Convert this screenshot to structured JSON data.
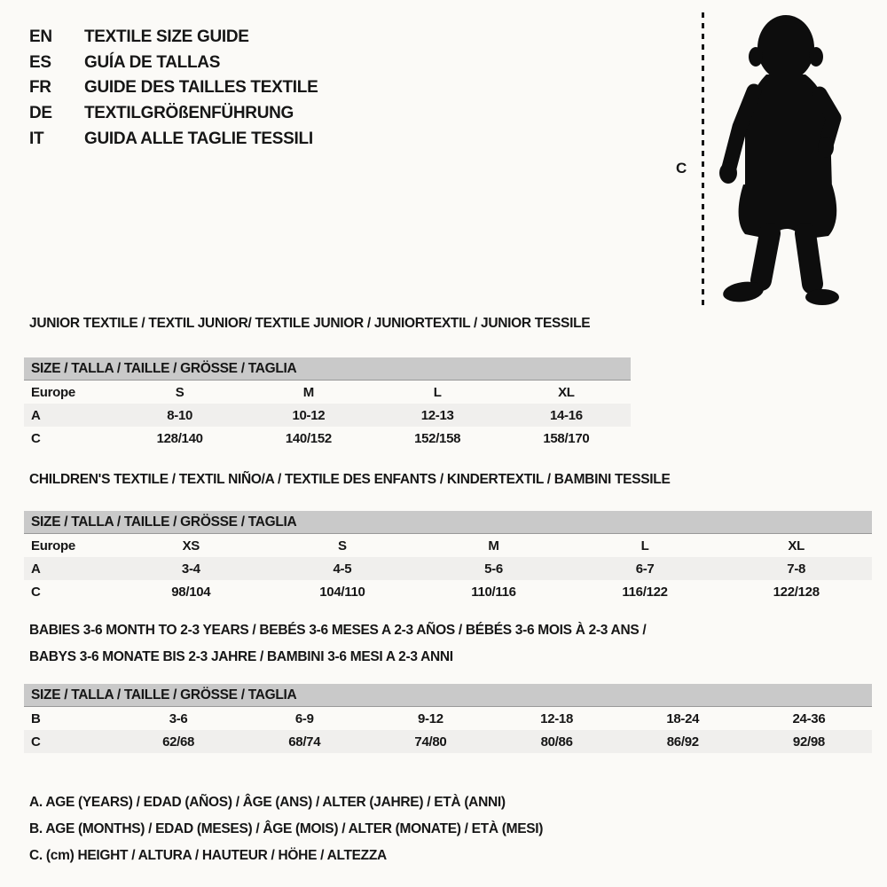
{
  "page": {
    "bg": "#fbfaf7",
    "fg": "#161616",
    "band_color": "#c9c9c9",
    "alt_row_color": "#f0efed",
    "silhouette_color": "#0d0d0d"
  },
  "languages": [
    {
      "code": "EN",
      "label": "TEXTILE SIZE GUIDE"
    },
    {
      "code": "ES",
      "label": "GUÍA DE TALLAS"
    },
    {
      "code": "FR",
      "label": "GUIDE DES TAILLES TEXTILE"
    },
    {
      "code": "DE",
      "label": "TEXTILGRÖßENFÜHRUNG"
    },
    {
      "code": "IT",
      "label": "GUIDA ALLE TAGLIE TESSILI"
    }
  ],
  "figure": {
    "measure_label": "C",
    "silhouette": "toddler-silhouette"
  },
  "tables": [
    {
      "title": "JUNIOR TEXTILE / TEXTIL JUNIOR/ TEXTILE JUNIOR / JUNIORTEXTIL / JUNIOR TESSILE",
      "header": "SIZE / TALLA / TAILLE / GRÖSSE / TAGLIA",
      "rows": [
        {
          "label": "Europe",
          "cells": [
            "S",
            "M",
            "L",
            "XL"
          ]
        },
        {
          "label": "A",
          "cells": [
            "8-10",
            "10-12",
            "12-13",
            "14-16"
          ]
        },
        {
          "label": "C",
          "cells": [
            "128/140",
            "140/152",
            "152/158",
            "158/170"
          ]
        }
      ]
    },
    {
      "title": "CHILDREN'S TEXTILE / TEXTIL NIÑO/A / TEXTILE DES ENFANTS / KINDERTEXTIL / BAMBINI TESSILE",
      "header": "SIZE / TALLA / TAILLE / GRÖSSE / TAGLIA",
      "rows": [
        {
          "label": "Europe",
          "cells": [
            "XS",
            "S",
            "M",
            "L",
            "XL"
          ]
        },
        {
          "label": "A",
          "cells": [
            "3-4",
            "4-5",
            "5-6",
            "6-7",
            "7-8"
          ]
        },
        {
          "label": "C",
          "cells": [
            "98/104",
            "104/110",
            "110/116",
            "116/122",
            "122/128"
          ]
        }
      ]
    },
    {
      "title": "BABIES 3-6 MONTH TO 2-3 YEARS / BEBÉS 3-6 MESES A 2-3 AÑOS / BÉBÉS 3-6 MOIS À 2-3 ANS /\nBABYS 3-6 MONATE BIS 2-3 JAHRE / BAMBINI 3-6 MESI A 2-3 ANNI",
      "header": "SIZE / TALLA / TAILLE / GRÖSSE / TAGLIA",
      "rows": [
        {
          "label": "B",
          "cells": [
            "3-6",
            "6-9",
            "9-12",
            "12-18",
            "18-24",
            "24-36"
          ]
        },
        {
          "label": "C",
          "cells": [
            "62/68",
            "68/74",
            "74/80",
            "80/86",
            "86/92",
            "92/98"
          ]
        }
      ]
    }
  ],
  "notes": [
    "A. AGE (YEARS) / EDAD (AÑOS) / ÂGE (ANS) / ALTER (JAHRE) / ETÀ (ANNI)",
    "B. AGE (MONTHS) / EDAD (MESES) / ÂGE (MOIS) / ALTER (MONATE) / ETÀ (MESI)",
    "C. (cm) HEIGHT / ALTURA / HAUTEUR / HÖHE / ALTEZZA"
  ]
}
